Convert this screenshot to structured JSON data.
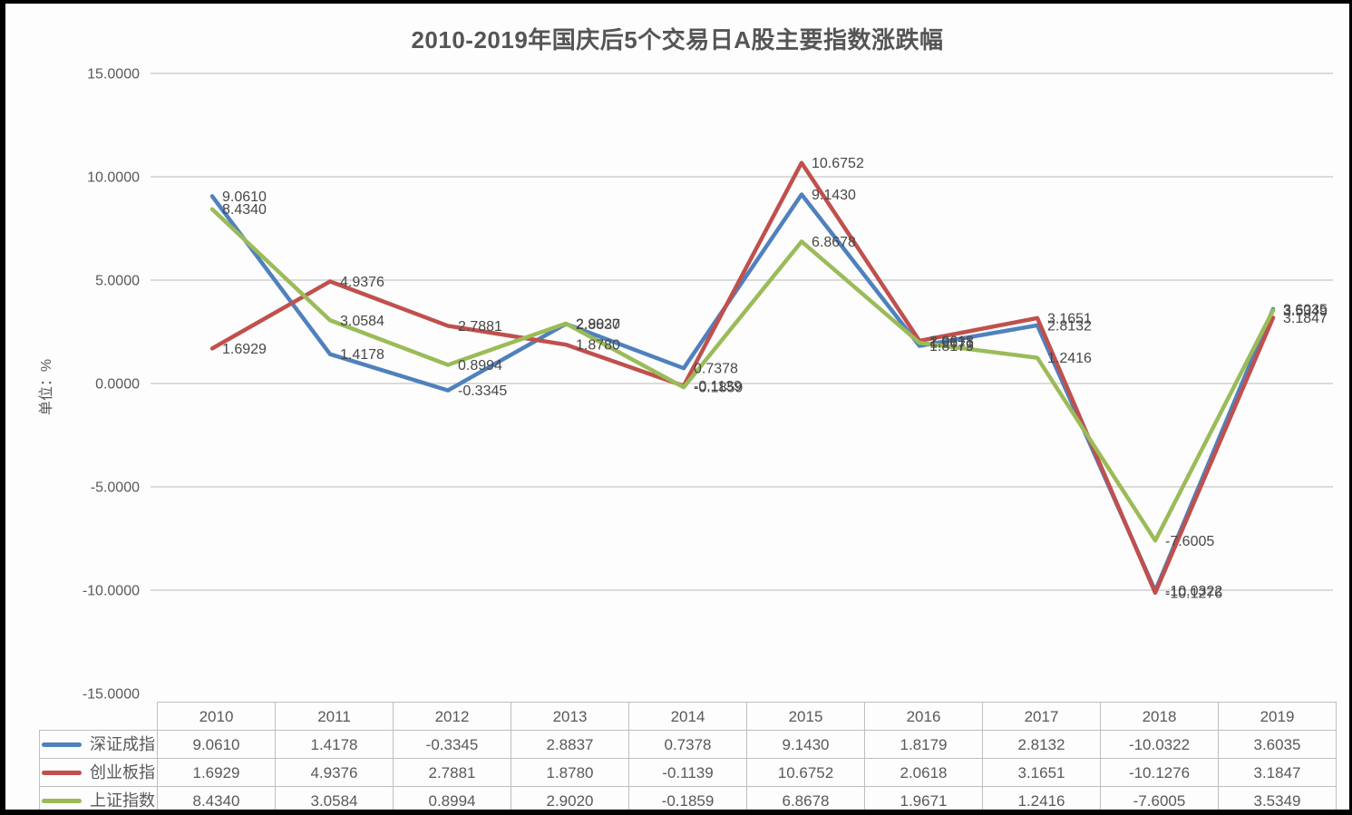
{
  "chart_data": {
    "type": "line",
    "title": "2010-2019年国庆后5个交易日A股主要指数涨跌幅",
    "ylabel": "单位：%",
    "xlabel": "",
    "categories": [
      "2010",
      "2011",
      "2012",
      "2013",
      "2014",
      "2015",
      "2016",
      "2017",
      "2018",
      "2019"
    ],
    "series": [
      {
        "name": "深证成指",
        "color": "#4F81BD",
        "values": [
          9.061,
          1.4178,
          -0.3345,
          2.8837,
          0.7378,
          9.143,
          1.8179,
          2.8132,
          -10.0322,
          3.6035
        ]
      },
      {
        "name": "创业板指",
        "color": "#C0504D",
        "values": [
          1.6929,
          4.9376,
          2.7881,
          1.878,
          -0.1139,
          10.6752,
          2.0618,
          3.1651,
          -10.1276,
          3.1847
        ]
      },
      {
        "name": "上证指数",
        "color": "#9BBB59",
        "values": [
          8.434,
          3.0584,
          0.8994,
          2.902,
          -0.1859,
          6.8678,
          1.9671,
          1.2416,
          -7.6005,
          3.5349
        ]
      }
    ],
    "ylim": [
      -15,
      15
    ],
    "y_ticks": [
      15,
      10,
      5,
      0,
      -5,
      -10,
      -15
    ],
    "value_decimals": 4,
    "grid": true,
    "data_labels": true,
    "legend_position": "data-table-left",
    "gridline_color": "#dbdbdb",
    "axis_text_color": "#595959",
    "data_label_color": "#474747",
    "table_border_color": "#bfbfbf"
  }
}
